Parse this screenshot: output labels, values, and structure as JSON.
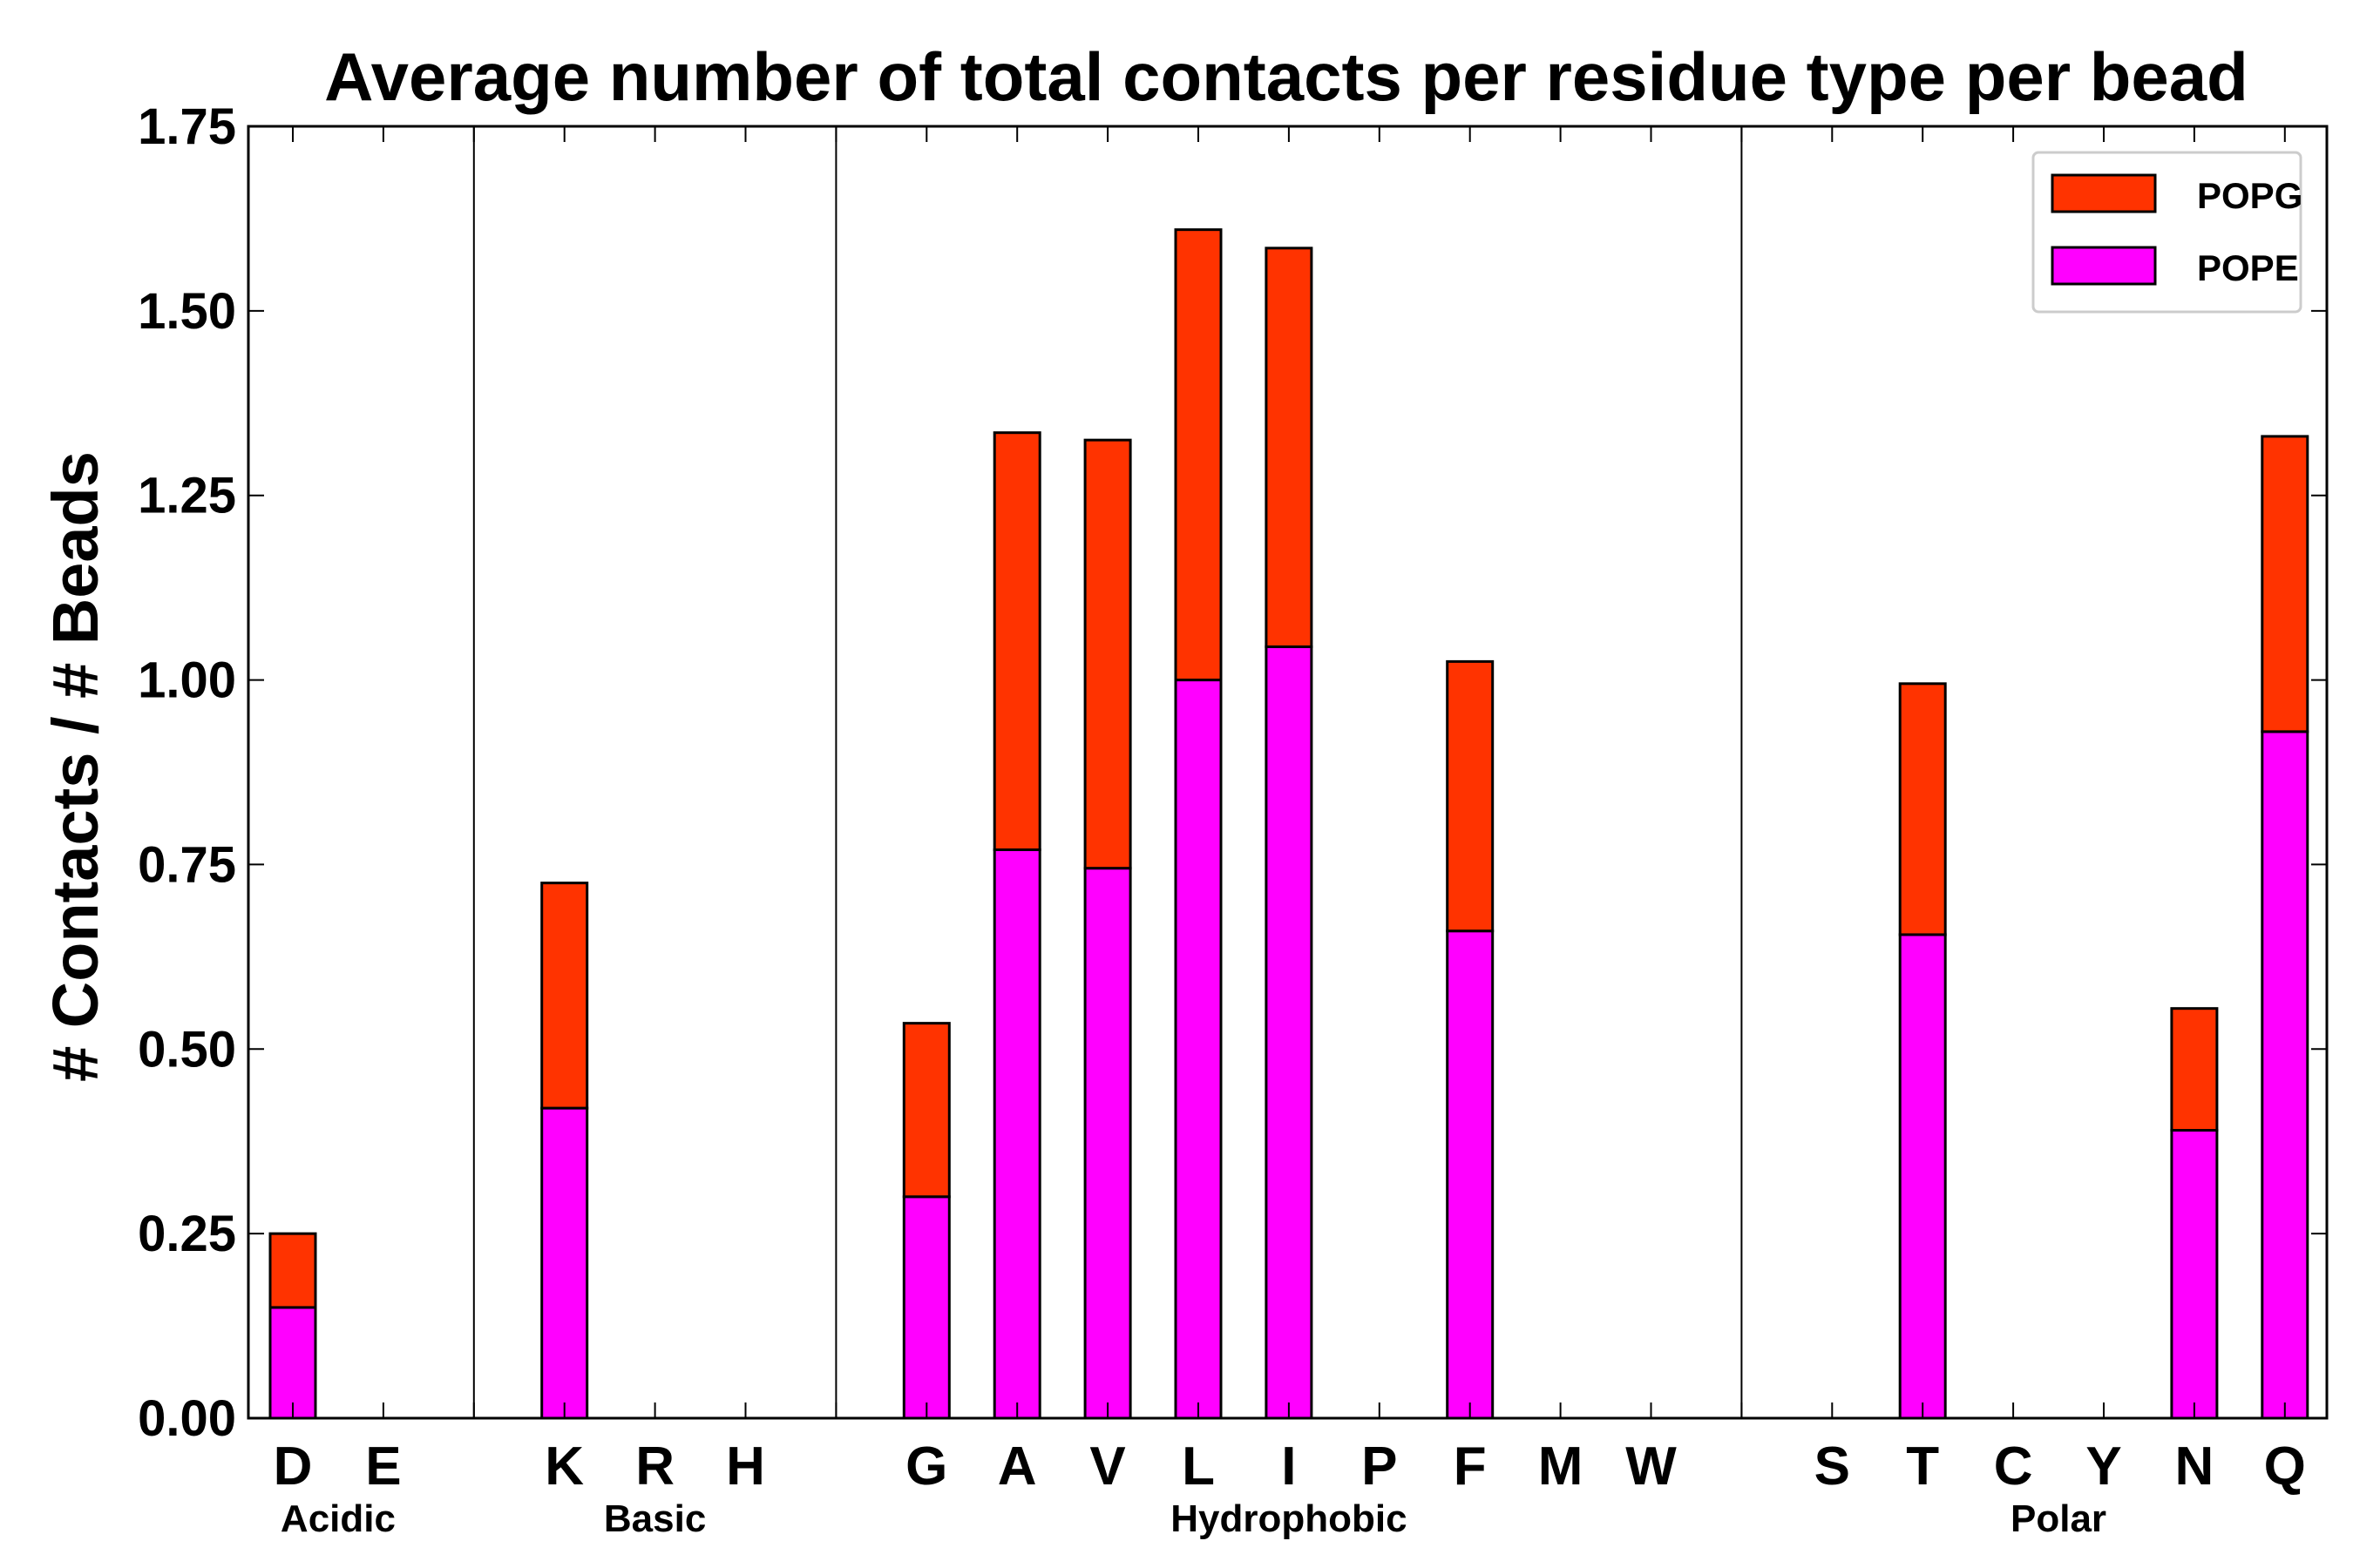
{
  "chart_data": {
    "type": "bar",
    "stacked": true,
    "title": "Average number of total contacts per residue type per bead",
    "xlabel": "",
    "ylabel": "# Contacts / # Beads",
    "ylim": [
      0,
      1.75
    ],
    "yticks": [
      "0.00",
      "0.25",
      "0.50",
      "0.75",
      "1.00",
      "1.25",
      "1.50",
      "1.75"
    ],
    "categories": [
      "D",
      "E",
      "",
      "K",
      "R",
      "H",
      "",
      "G",
      "A",
      "V",
      "L",
      "I",
      "P",
      "F",
      "M",
      "W",
      "",
      "S",
      "T",
      "C",
      "Y",
      "N",
      "Q"
    ],
    "groups": [
      {
        "name": "Acidic",
        "start": 0,
        "end": 1
      },
      {
        "name": "Basic",
        "start": 3,
        "end": 5
      },
      {
        "name": "Hydrophobic",
        "start": 7,
        "end": 15
      },
      {
        "name": "Polar",
        "start": 17,
        "end": 22
      }
    ],
    "separators_after": [
      2,
      6,
      16
    ],
    "series": [
      {
        "name": "POPE",
        "color": "#ff00ff",
        "values": [
          0.15,
          0,
          0,
          0.42,
          0,
          0,
          0,
          0.3,
          0.77,
          0.745,
          1.0,
          1.045,
          0,
          0.66,
          0,
          0,
          0,
          0,
          0.655,
          0,
          0,
          0.39,
          0.93
        ]
      },
      {
        "name": "POPG",
        "color": "#ff3300",
        "values": [
          0.1,
          0,
          0,
          0.305,
          0,
          0,
          0,
          0.235,
          0.565,
          0.58,
          0.61,
          0.54,
          0,
          0.365,
          0,
          0,
          0,
          0,
          0.34,
          0,
          0,
          0.165,
          0.4
        ]
      }
    ],
    "legend": {
      "position": "top-right",
      "entries": [
        "POPG",
        "POPE"
      ]
    }
  }
}
